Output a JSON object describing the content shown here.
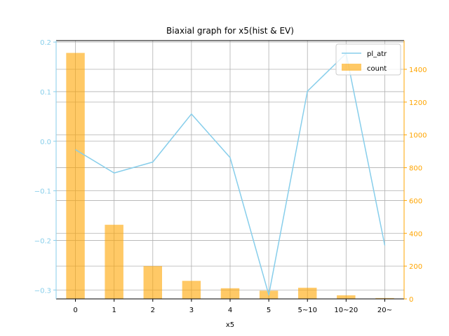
{
  "chart_data": {
    "type": "bar",
    "title": "Biaxial graph for x5(hist & EV)",
    "xlabel": "x5",
    "categories": [
      "0",
      "1",
      "2",
      "3",
      "4",
      "5",
      "5~10",
      "10~20",
      "20~"
    ],
    "series": [
      {
        "name": "count",
        "type": "bar",
        "axis": "right",
        "color": "#ffa500",
        "values": [
          1500,
          452,
          200,
          110,
          65,
          50,
          68,
          22,
          5
        ]
      },
      {
        "name": "pl_atr",
        "type": "line",
        "axis": "left",
        "color": "#87ceeb",
        "values": [
          -0.017,
          -0.064,
          -0.042,
          0.055,
          -0.033,
          -0.31,
          0.101,
          0.177,
          -0.21
        ]
      }
    ],
    "y_left": {
      "ylim": [
        -0.318,
        0.203
      ],
      "ticks": [
        -0.3,
        -0.2,
        -0.1,
        0.0,
        0.1,
        0.2
      ],
      "tick_labels": [
        "−0.3",
        "−0.2",
        "−0.1",
        "0.0",
        "0.1",
        "0.2"
      ],
      "color": "#87ceeb"
    },
    "y_right": {
      "ylim": [
        0,
        1575
      ],
      "ticks": [
        0,
        200,
        400,
        600,
        800,
        1000,
        1200,
        1400
      ],
      "tick_labels": [
        "0",
        "200",
        "400",
        "600",
        "800",
        "1000",
        "1200",
        "1400"
      ],
      "color": "#ffa500"
    },
    "grid": true,
    "legend": {
      "placement": "top-right",
      "entries": [
        "pl_atr",
        "count"
      ]
    }
  }
}
